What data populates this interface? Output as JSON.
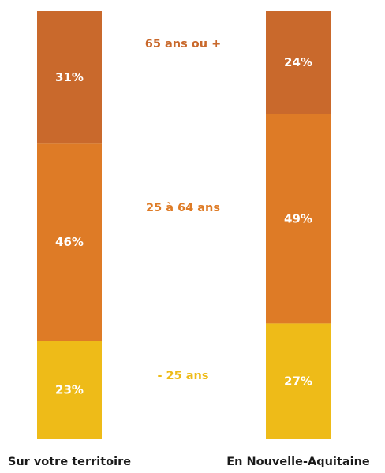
{
  "chart_data": {
    "type": "bar",
    "stacked": true,
    "orientation": "vertical",
    "categories": [
      "Sur votre territoire",
      "En Nouvelle-Aquitaine"
    ],
    "series": [
      {
        "name": "- 25 ans",
        "values": [
          23,
          27
        ],
        "labels": [
          "23%",
          "27%"
        ],
        "color": "#eebb18"
      },
      {
        "name": "25 à 64 ans",
        "values": [
          46,
          49
        ],
        "labels": [
          "46%",
          "49%"
        ],
        "color": "#de7b26"
      },
      {
        "name": "65 ans ou +",
        "values": [
          31,
          24
        ],
        "labels": [
          "31%",
          "24%"
        ],
        "color": "#c9692c"
      }
    ],
    "category_label_colors": [
      "#eebb18",
      "#de7b26",
      "#c9692c"
    ],
    "ylim": [
      0,
      100
    ],
    "grid": false,
    "legend_placement": "between-bars"
  }
}
